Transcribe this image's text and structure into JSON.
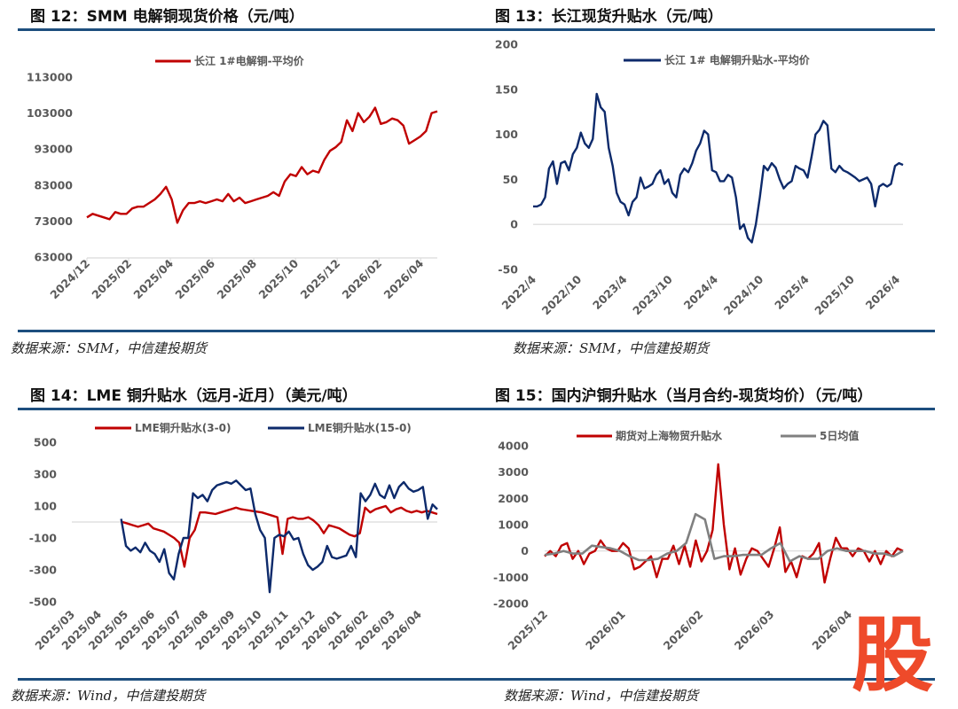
{
  "watermark": "股",
  "chart_data": [
    {
      "id": "c12",
      "type": "line",
      "title": "图 12：SMM 电解铜现货价格（元/吨）",
      "source": "数据来源：SMM，中信建投期货",
      "ylabel": "元/吨",
      "ylim": [
        63000,
        113000
      ],
      "yticks": [
        "63000",
        "73000",
        "83000",
        "93000",
        "103000",
        "113000"
      ],
      "ytick_values": [
        63000,
        73000,
        83000,
        93000,
        103000,
        113000
      ],
      "xunit": "months since 2024/12",
      "xlim": [
        0,
        16.8
      ],
      "xtick_values": [
        0,
        2,
        4,
        6,
        8,
        10,
        12,
        14,
        16
      ],
      "xticks": [
        "2024/12",
        "2025/02",
        "2025/04",
        "2025/06",
        "2025/08",
        "2025/10",
        "2025/12",
        "2026/02",
        "2026/04"
      ],
      "legend_position": "top-center",
      "grid": false,
      "series": [
        {
          "name": "长江 1#电解铜-平均价",
          "color": "#c00000",
          "x_range": [
            0,
            16.8
          ],
          "values": [
            74000,
            75000,
            74500,
            74000,
            73500,
            75500,
            75000,
            75000,
            76500,
            77000,
            77000,
            78000,
            79000,
            80500,
            82500,
            79000,
            72500,
            76000,
            78000,
            78000,
            78500,
            78000,
            78500,
            79000,
            78500,
            80500,
            78500,
            79500,
            78000,
            78500,
            79000,
            79500,
            80000,
            81000,
            80000,
            84000,
            86000,
            85500,
            88000,
            86000,
            87000,
            86500,
            90000,
            92500,
            93500,
            95000,
            101000,
            98000,
            103000,
            100500,
            102000,
            104500,
            100000,
            100500,
            101500,
            101000,
            99500,
            94500,
            95500,
            96500,
            98000,
            103000,
            103500
          ]
        }
      ]
    },
    {
      "id": "c13",
      "type": "line",
      "title": "图 13：长江现货升贴水（元/吨）",
      "source": "数据来源：SMM，中信建投期货",
      "ylim": [
        -50,
        200
      ],
      "yticks": [
        "-50",
        "0",
        "50",
        "100",
        "150",
        "200"
      ],
      "ytick_values": [
        -50,
        0,
        50,
        100,
        150,
        200
      ],
      "xunit": "months since 2022/4",
      "xlim": [
        0,
        48.8
      ],
      "xtick_values": [
        0,
        6,
        12,
        18,
        24,
        30,
        36,
        42,
        48
      ],
      "xticks": [
        "2022/4",
        "2022/10",
        "2023/4",
        "2023/10",
        "2024/4",
        "2024/10",
        "2025/4",
        "2025/10",
        "2026/4"
      ],
      "legend_position": "top-center",
      "grid": false,
      "series": [
        {
          "name": "长江 1# 电解铜升贴水-平均价",
          "color": "#0d2a6b",
          "x_range": [
            0,
            48.8
          ],
          "values": [
            20,
            20,
            22,
            30,
            62,
            70,
            45,
            68,
            70,
            60,
            78,
            85,
            102,
            90,
            85,
            95,
            145,
            130,
            125,
            85,
            65,
            35,
            25,
            22,
            10,
            25,
            30,
            52,
            40,
            42,
            45,
            55,
            60,
            45,
            50,
            35,
            30,
            55,
            62,
            58,
            68,
            82,
            90,
            104,
            100,
            60,
            58,
            48,
            48,
            55,
            52,
            30,
            -5,
            0,
            -15,
            -20,
            0,
            30,
            65,
            60,
            68,
            63,
            50,
            40,
            45,
            48,
            65,
            62,
            60,
            52,
            75,
            100,
            105,
            115,
            110,
            62,
            58,
            65,
            60,
            58,
            55,
            52,
            48,
            50,
            52,
            45,
            20,
            42,
            45,
            42,
            45,
            65,
            68,
            66
          ]
        }
      ]
    },
    {
      "id": "c14",
      "type": "line",
      "title": "图 14：LME 铜升贴水（远月-近月）（美元/吨）",
      "source": "数据来源：Wind，中信建投期货",
      "ylim": [
        -500,
        500
      ],
      "yticks": [
        "-500",
        "-300",
        "-100",
        "100",
        "300",
        "500"
      ],
      "ytick_values": [
        -500,
        -300,
        -100,
        100,
        300,
        500
      ],
      "xunit": "months since 2025/03",
      "xlim": [
        0,
        13.7
      ],
      "xtick_values": [
        0,
        1,
        2,
        3,
        4,
        5,
        6,
        7,
        8,
        9,
        10,
        11,
        12,
        13
      ],
      "xticks": [
        "2025/03",
        "2025/04",
        "2025/05",
        "2025/06",
        "2025/07",
        "2025/08",
        "2025/09",
        "2025/10",
        "2025/11",
        "2025/12",
        "2026/01",
        "2026/02",
        "2026/03",
        "2026/04"
      ],
      "legend_position": "top",
      "grid": false,
      "series": [
        {
          "name": "LME铜升贴水(3-0)",
          "color": "#c00000",
          "x_range": [
            1.9,
            13.7
          ],
          "values": [
            0,
            -10,
            -20,
            -30,
            -20,
            -10,
            -40,
            -50,
            -60,
            -80,
            -100,
            -130,
            -280,
            -100,
            -50,
            60,
            60,
            55,
            50,
            60,
            70,
            80,
            90,
            80,
            75,
            70,
            65,
            60,
            50,
            40,
            30,
            -200,
            20,
            30,
            20,
            20,
            30,
            10,
            -20,
            -70,
            -20,
            -30,
            -40,
            -60,
            -80,
            -90,
            -70,
            90,
            60,
            80,
            90,
            100,
            60,
            80,
            90,
            70,
            60,
            70,
            60,
            70,
            60,
            50
          ]
        },
        {
          "name": "LME铜升贴水(15-0)",
          "color": "#0d2a6b",
          "x_range": [
            1.85,
            13.7
          ],
          "values": [
            20,
            -150,
            -180,
            -160,
            -190,
            -130,
            -180,
            -200,
            -250,
            -170,
            -320,
            -360,
            -200,
            -100,
            -100,
            180,
            150,
            170,
            130,
            200,
            230,
            240,
            250,
            240,
            260,
            230,
            200,
            210,
            50,
            -50,
            -100,
            -440,
            -100,
            -80,
            -90,
            -60,
            -110,
            -100,
            -200,
            -270,
            -300,
            -280,
            -250,
            -150,
            -220,
            -230,
            -220,
            -210,
            -150,
            -220,
            180,
            130,
            170,
            240,
            170,
            150,
            230,
            150,
            220,
            250,
            210,
            190,
            200,
            220,
            20,
            110,
            80
          ]
        }
      ]
    },
    {
      "id": "c15",
      "type": "line",
      "title": "图 15：国内沪铜升贴水（当月合约-现货均价）（元/吨）",
      "source": "数据来源：Wind，中信建投期货",
      "ylim": [
        -2000,
        4000
      ],
      "yticks": [
        "-2000",
        "-1000",
        "0",
        "1000",
        "2000",
        "3000",
        "4000"
      ],
      "ytick_values": [
        -2000,
        -1000,
        0,
        1000,
        2000,
        3000,
        4000
      ],
      "xunit": "trading days since 2025/12",
      "xlim": [
        0,
        106
      ],
      "xtick_values": [
        0,
        23,
        46,
        67,
        90
      ],
      "xticks": [
        "2025/12",
        "2026/01",
        "2026/02",
        "2026/03",
        "2026/04"
      ],
      "legend_position": "top",
      "grid": false,
      "series": [
        {
          "name": "期货对上海物贸升贴水",
          "color": "#c00000",
          "x_range": [
            0,
            106
          ],
          "values": [
            -200,
            0,
            -200,
            200,
            300,
            -300,
            0,
            -500,
            -100,
            0,
            400,
            100,
            0,
            0,
            300,
            100,
            -700,
            -600,
            -400,
            -200,
            -1000,
            -300,
            -300,
            200,
            -500,
            200,
            -600,
            400,
            -400,
            0,
            800,
            3300,
            1000,
            -700,
            100,
            -900,
            -300,
            100,
            0,
            -300,
            -600,
            100,
            900,
            -800,
            -400,
            -1000,
            -200,
            -300,
            -100,
            300,
            -1200,
            -300,
            500,
            100,
            100,
            -200,
            100,
            0,
            -400,
            0,
            -500,
            0,
            -200,
            100,
            0
          ]
        },
        {
          "name": "5日均值",
          "color": "#808080",
          "x_range": [
            0,
            106
          ],
          "values": [
            -150,
            -100,
            0,
            -100,
            -100,
            200,
            150,
            100,
            0,
            -200,
            -350,
            -350,
            -300,
            -100,
            0,
            300,
            1400,
            1200,
            -300,
            -200,
            -200,
            -150,
            -150,
            -150,
            100,
            300,
            -400,
            -200,
            -300,
            -300,
            0,
            100,
            0,
            0,
            0,
            -100,
            -100,
            -200,
            0
          ]
        }
      ]
    }
  ]
}
